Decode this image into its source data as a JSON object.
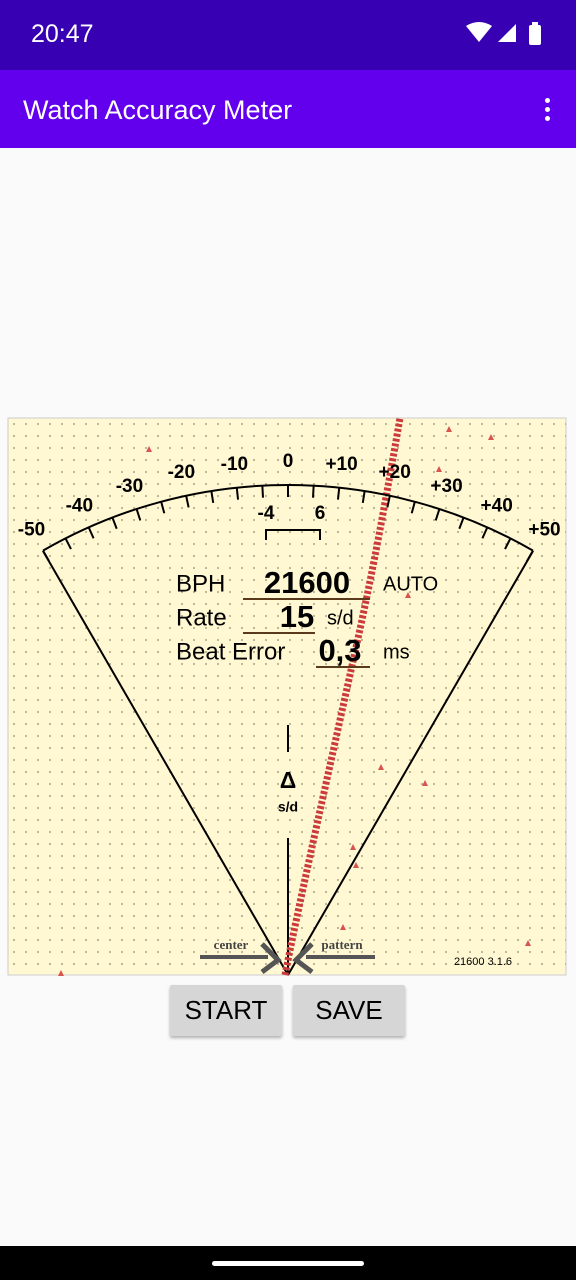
{
  "status_bar": {
    "time": "20:47"
  },
  "app_bar": {
    "title": "Watch Accuracy Meter"
  },
  "dial": {
    "scale_labels": [
      "-50",
      "-40",
      "-30",
      "-20",
      "-10",
      "0",
      "+10",
      "+20",
      "+30",
      "+40",
      "+50"
    ],
    "window_labels": [
      "-4",
      "6"
    ]
  },
  "readout": {
    "bph_label": "BPH",
    "bph_value": "21600",
    "bph_mode": "AUTO",
    "rate_label": "Rate",
    "rate_value": "15",
    "rate_unit": "s/d",
    "beat_error_label": "Beat Error",
    "beat_error_value": "0,3",
    "beat_error_unit": "ms"
  },
  "delta": {
    "symbol": "Δ",
    "unit": "s/d"
  },
  "pattern": {
    "center_label": "center",
    "pattern_label": "pattern"
  },
  "version": "21600 3.1.6",
  "buttons": [
    "START",
    "SAVE"
  ]
}
